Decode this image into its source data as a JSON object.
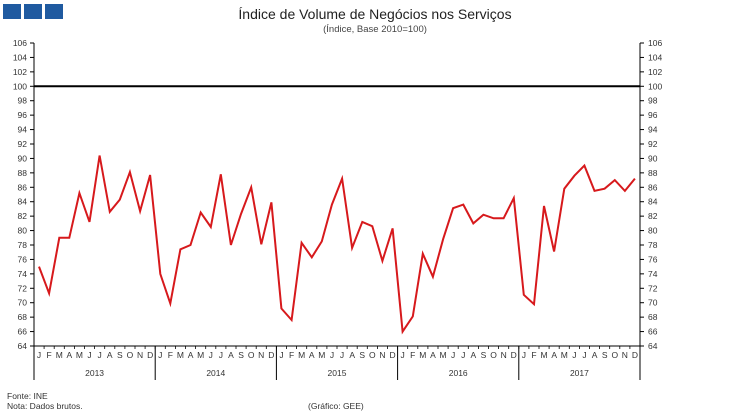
{
  "header": {
    "logo_icon": "logo-blocks-icon",
    "logo_color": "#1f5aa0"
  },
  "chart_data": {
    "type": "line",
    "title": "Índice de Volume de Negócios nos Serviços",
    "subtitle": "(Índice, Base 2010=100)",
    "xlabel": "",
    "ylabel": "",
    "ylim": [
      64,
      106
    ],
    "yticks": [
      64,
      66,
      68,
      70,
      72,
      74,
      76,
      78,
      80,
      82,
      84,
      86,
      88,
      90,
      92,
      94,
      96,
      98,
      100,
      102,
      104,
      106
    ],
    "ytick_labels": [
      "64",
      "66",
      "68",
      "70",
      "72",
      "74",
      "76",
      "78",
      "80",
      "82",
      "84",
      "86",
      "88",
      "90",
      "92",
      "94",
      "96",
      "98",
      "100",
      "102",
      "104",
      "106"
    ],
    "month_labels": [
      "J",
      "F",
      "M",
      "A",
      "M",
      "J",
      "J",
      "A",
      "S",
      "O",
      "N",
      "D"
    ],
    "years": [
      "2013",
      "2014",
      "2015",
      "2016",
      "2017"
    ],
    "reference_line": {
      "value": 100,
      "color": "#000000"
    },
    "series": [
      {
        "name": "Índice de Volume de Negócios nos Serviços",
        "color": "#d7191c",
        "values": [
          75.0,
          71.3,
          79.0,
          79.0,
          85.2,
          81.2,
          90.4,
          82.6,
          84.3,
          88.1,
          82.7,
          87.7,
          74.0,
          69.9,
          77.4,
          78.0,
          82.5,
          80.5,
          87.8,
          78.0,
          82.3,
          86.0,
          78.1,
          83.9,
          69.2,
          67.6,
          78.3,
          76.3,
          78.5,
          83.6,
          87.2,
          77.6,
          81.2,
          80.6,
          75.8,
          80.3,
          66.0,
          68.1,
          76.8,
          73.6,
          78.8,
          83.1,
          83.6,
          81.0,
          82.2,
          81.7,
          81.7,
          84.5,
          71.1,
          69.8,
          83.4,
          77.1,
          85.8,
          87.6,
          89.0,
          85.5,
          85.8,
          87.0,
          85.5,
          87.2
        ]
      }
    ]
  },
  "footer": {
    "source": "Fonte: INE",
    "note": "Nota: Dados brutos.",
    "credit": "(Gráfico: GEE)"
  }
}
